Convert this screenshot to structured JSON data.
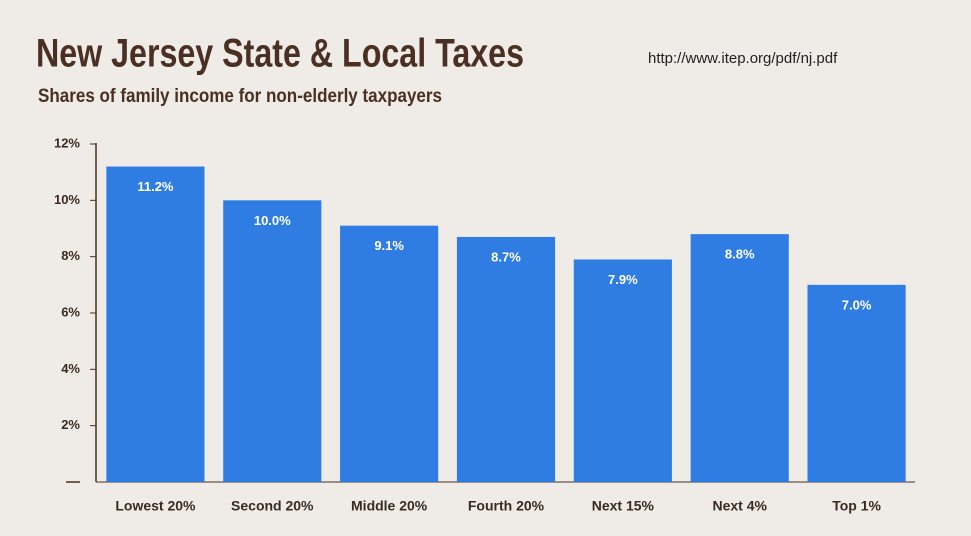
{
  "chart_data": {
    "type": "bar",
    "title": "New Jersey State & Local Taxes",
    "subtitle": "Shares of family income for non-elderly taxpayers",
    "source": "http://www.itep.org/pdf/nj.pdf",
    "categories": [
      "Lowest 20%",
      "Second 20%",
      "Middle 20%",
      "Fourth 20%",
      "Next 15%",
      "Next 4%",
      "Top 1%"
    ],
    "values": [
      11.2,
      10.0,
      9.1,
      8.7,
      7.9,
      8.8,
      7.0
    ],
    "value_labels": [
      "11.2%",
      "10.0%",
      "9.1%",
      "8.7%",
      "7.9%",
      "8.8%",
      "7.0%"
    ],
    "color": "#2f7de3",
    "ylim": [
      0,
      12
    ],
    "yticks": [
      {
        "value": 2,
        "label": "2%"
      },
      {
        "value": 4,
        "label": "4%"
      },
      {
        "value": 6,
        "label": "6%"
      },
      {
        "value": 8,
        "label": "8%"
      },
      {
        "value": 10,
        "label": "10%"
      },
      {
        "value": 12,
        "label": "12%"
      }
    ],
    "grid": false
  }
}
